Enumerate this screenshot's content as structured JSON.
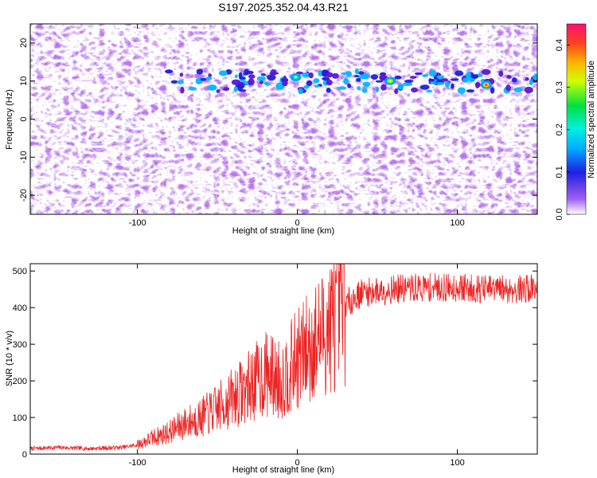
{
  "title": "S197.2025.352.04.43.R21",
  "colors": {
    "signal_line": "#ee2222",
    "axis": "#000000",
    "background": "#ffffff"
  },
  "chart_data": [
    {
      "type": "heatmap",
      "title": "S197.2025.352.04.43.R21",
      "xlabel": "Height of straight line (km)",
      "ylabel": "Frequency (Hz)",
      "xlim": [
        -167,
        150
      ],
      "ylim": [
        -25,
        25
      ],
      "x_ticks": [
        -100,
        0,
        100
      ],
      "x_tick_labels": [
        "-100",
        "0",
        "100"
      ],
      "y_ticks": [
        -20,
        -10,
        0,
        10,
        20
      ],
      "y_tick_labels": [
        "-20",
        "-10",
        "0",
        "10",
        "20"
      ],
      "signal_band": {
        "frequency_hz": 10,
        "description": "horizontal streak of elevated amplitude near 10 Hz"
      },
      "hotspots": [
        {
          "x": -1,
          "y": 11,
          "value": 0.3
        },
        {
          "x": 58,
          "y": 10,
          "value": 0.25
        },
        {
          "x": 118,
          "y": 9,
          "value": 0.4
        }
      ],
      "colorbar": {
        "label": "Normalized spectral amplitude",
        "range": [
          0,
          0.45
        ],
        "ticks": [
          0.0,
          0.1,
          0.2,
          0.3,
          0.4
        ],
        "tick_labels": [
          "0.0",
          "0.1",
          "0.2",
          "0.3",
          "0.4"
        ],
        "colormap": [
          "#ffffff",
          "#7b2fd9",
          "#2020e0",
          "#00d0ff",
          "#00e060",
          "#ffe000",
          "#ff8000",
          "#ff1060"
        ]
      },
      "grid": false
    },
    {
      "type": "line",
      "xlabel": "Height of straight line (km)",
      "ylabel": "SNR (10 * v/v)",
      "xlim": [
        -167,
        150
      ],
      "ylim": [
        0,
        520
      ],
      "x_ticks": [
        -100,
        0,
        100
      ],
      "x_tick_labels": [
        "-100",
        "0",
        "100"
      ],
      "y_ticks": [
        0,
        100,
        200,
        300,
        400,
        500
      ],
      "y_tick_labels": [
        "0",
        "100",
        "200",
        "300",
        "400",
        "500"
      ],
      "grid": false,
      "series": [
        {
          "x": [
            -167,
            -150,
            -130,
            -110,
            -100,
            -90,
            -80,
            -70,
            -60,
            -50,
            -40,
            -30,
            -20,
            -10,
            0,
            10,
            20,
            30,
            40,
            60,
            80,
            100,
            120,
            140,
            150
          ],
          "values": [
            15,
            18,
            15,
            18,
            25,
            45,
            60,
            85,
            100,
            125,
            155,
            185,
            220,
            200,
            260,
            300,
            350,
            410,
            440,
            450,
            455,
            455,
            450,
            450,
            455
          ]
        }
      ]
    }
  ]
}
